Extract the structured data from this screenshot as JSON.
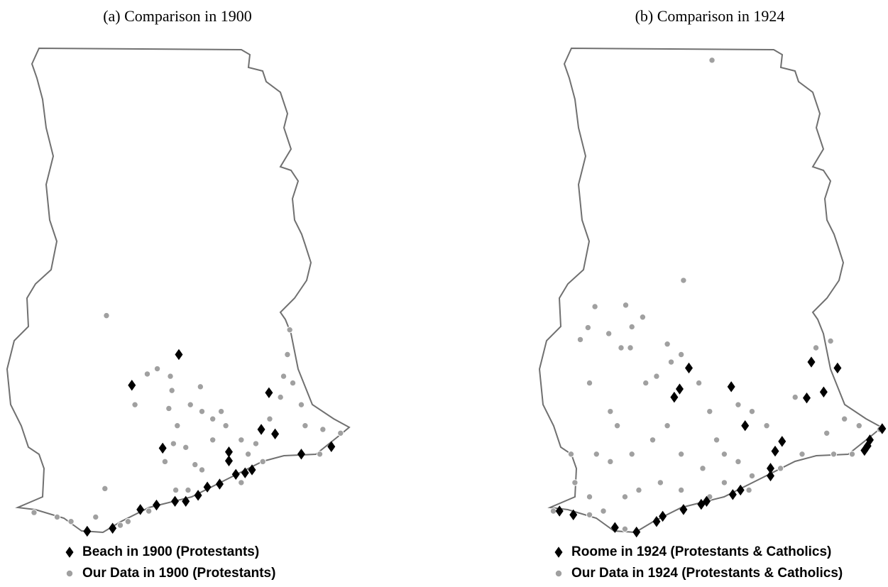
{
  "panels": [
    {
      "title": "(a)  Comparison in 1900",
      "series": [
        {
          "name": "Beach in 1900 (Protestants)",
          "marker": "diamond",
          "color": "#000000",
          "lon": [
            -1.02,
            -1.63,
            0.15,
            0.05,
            0.23,
            -1.23,
            -0.37,
            -0.37,
            0.96,
            0.57,
            -0.07,
            -0.16,
            -0.28,
            -0.49,
            -0.65,
            -0.77,
            -0.93,
            -1.07,
            -1.31,
            -1.52,
            -1.88,
            -2.21
          ],
          "lat": [
            7.08,
            6.67,
            6.57,
            6.08,
            6.02,
            5.83,
            5.78,
            5.66,
            5.85,
            5.75,
            5.54,
            5.5,
            5.48,
            5.35,
            5.31,
            5.2,
            5.12,
            5.12,
            5.07,
            5.01,
            4.76,
            4.72
          ]
        },
        {
          "name": "Our Data in 1900 (Protestants)",
          "marker": "dot",
          "color": "#a0a0a0",
          "lon": [
            -1.96,
            -1.98,
            -2.1,
            -1.59,
            -1.43,
            -1.3,
            -1.13,
            -1.11,
            -1.15,
            -1.04,
            -1.09,
            -1.2,
            -0.87,
            -0.74,
            -0.72,
            -0.58,
            -0.47,
            -0.41,
            -0.93,
            -0.81,
            -0.72,
            -1.06,
            -0.9,
            -0.58,
            -0.21,
            -0.12,
            -0.02,
            0.16,
            0.3,
            0.34,
            0.39,
            0.42,
            0.46,
            0.57,
            0.62,
            0.85,
            1.08,
            0.81,
            0.07,
            -0.21,
            -1.41,
            -1.68,
            -2.42,
            -2.6,
            -2.9,
            -1.78
          ],
          "lat": [
            7.6,
            5.29,
            4.91,
            6.41,
            6.82,
            6.89,
            6.79,
            6.6,
            6.36,
            6.13,
            5.89,
            5.65,
            6.41,
            6.65,
            6.32,
            6.22,
            6.32,
            6.13,
            5.84,
            5.61,
            5.54,
            5.27,
            5.27,
            5.94,
            5.94,
            5.75,
            5.89,
            6.22,
            6.51,
            6.79,
            7.08,
            7.41,
            6.7,
            6.41,
            6.13,
            6.08,
            6.03,
            5.75,
            5.65,
            5.37,
            4.99,
            4.85,
            4.85,
            4.91,
            4.97,
            4.8
          ]
        }
      ]
    },
    {
      "title": "(b)  Comparison in 1924",
      "series": [
        {
          "name": "Roome in 1924 (Protestants & Catholics)",
          "marker": "diamond",
          "color": "#000000",
          "lon": [
            -1.31,
            -0.76,
            -1.43,
            -1.5,
            0.28,
            0.62,
            0.44,
            0.22,
            -0.58,
            -0.1,
            -0.19,
            -0.25,
            -0.25,
            -0.64,
            -0.74,
            -1.08,
            -1.15,
            -1.38,
            -1.65,
            -1.73,
            -1.99,
            -2.27,
            -2.81,
            -2.99,
            1.2,
            1.04,
            1.01,
            0.97
          ],
          "lat": [
            6.9,
            6.65,
            6.62,
            6.51,
            6.98,
            6.9,
            6.58,
            6.5,
            6.13,
            5.92,
            5.79,
            5.56,
            5.46,
            5.27,
            5.21,
            5.12,
            5.08,
            5.01,
            4.92,
            4.85,
            4.71,
            4.77,
            4.94,
            4.99,
            6.09,
            5.94,
            5.86,
            5.8
          ]
        },
        {
          "name": "Our Data in 1924 (Protestants & Catholics)",
          "marker": "dot",
          "color": "#a0a0a0",
          "lon": [
            -1.01,
            -1.38,
            -2.53,
            -2.13,
            -1.91,
            -2.05,
            -2.35,
            -2.62,
            -2.72,
            -2.07,
            -2.19,
            -1.59,
            -2.6,
            -2.33,
            -2.24,
            -1.87,
            -1.73,
            -1.54,
            -1.41,
            -1.18,
            -1.04,
            -0.95,
            -0.67,
            -0.49,
            -0.3,
            0.07,
            0.34,
            0.53,
            0.71,
            0.9,
            0.48,
            0.16,
            -0.12,
            -0.49,
            -0.85,
            -1.13,
            -1.41,
            -1.59,
            -1.78,
            -2.05,
            -2.33,
            -2.51,
            -2.84,
            -2.79,
            -2.6,
            -2.42,
            -2.14,
            -1.96,
            -1.68,
            -1.41,
            -1.04,
            -0.67,
            -0.85,
            -0.53,
            0.81,
            1.17,
            0.57,
            -3.07,
            -2.6,
            -2.14
          ],
          "lat": [
            11.01,
            8.07,
            7.72,
            7.74,
            7.58,
            7.45,
            7.36,
            7.44,
            7.28,
            7.17,
            7.17,
            7.22,
            6.7,
            6.32,
            6.13,
            6.7,
            6.79,
            6.98,
            7.08,
            6.7,
            6.32,
            5.94,
            6.41,
            6.32,
            6.13,
            6.51,
            7.17,
            7.26,
            6.22,
            6.13,
            6.03,
            5.75,
            5.56,
            5.46,
            5.37,
            5.56,
            5.75,
            6.13,
            5.94,
            5.75,
            5.65,
            5.75,
            5.75,
            5.37,
            5.18,
            4.99,
            5.18,
            5.27,
            5.37,
            5.27,
            5.18,
            5.65,
            5.75,
            5.27,
            5.75,
            6.08,
            5.75,
            4.99,
            4.94,
            4.75
          ]
        }
      ]
    }
  ]
}
